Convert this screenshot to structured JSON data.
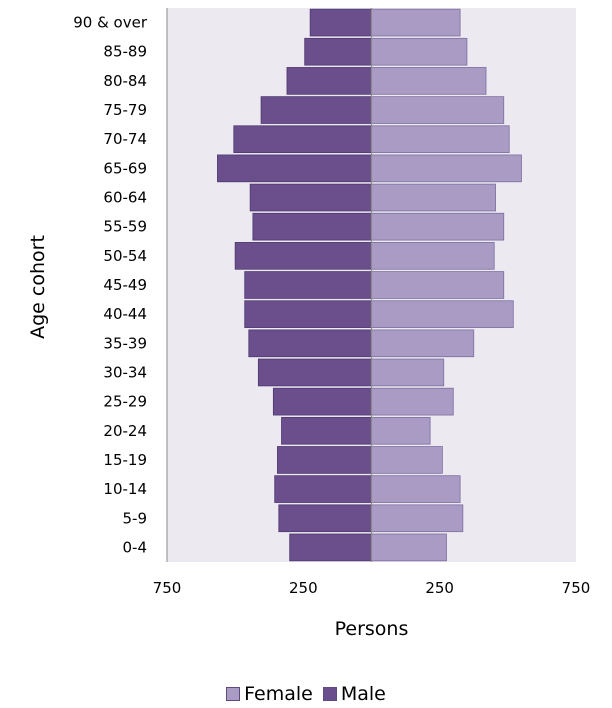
{
  "chart_data": {
    "type": "bar",
    "orientation": "horizontal",
    "subtype": "population-pyramid",
    "categories": [
      "0-4",
      "5-9",
      "10-14",
      "15-19",
      "20-24",
      "25-29",
      "30-34",
      "35-39",
      "40-44",
      "45-49",
      "50-54",
      "55-59",
      "60-64",
      "65-69",
      "70-74",
      "75-79",
      "80-84",
      "85-89",
      "90 & over"
    ],
    "series": [
      {
        "name": "Male",
        "color": "#6a4f8c",
        "side": "left",
        "values": [
          300,
          340,
          355,
          345,
          330,
          360,
          415,
          450,
          465,
          465,
          500,
          435,
          445,
          565,
          505,
          405,
          310,
          245,
          225
        ]
      },
      {
        "name": "Female",
        "color": "#a99bc4",
        "side": "right",
        "values": [
          275,
          335,
          325,
          260,
          215,
          300,
          265,
          375,
          520,
          485,
          450,
          485,
          455,
          550,
          505,
          485,
          420,
          350,
          325
        ]
      }
    ],
    "xlabel": "Persons",
    "ylabel": "Age cohort",
    "xlim": [
      -750,
      750
    ],
    "xticks": [
      {
        "value": -750,
        "label": "750"
      },
      {
        "value": -250,
        "label": "250"
      },
      {
        "value": 250,
        "label": "250"
      },
      {
        "value": 750,
        "label": "750"
      }
    ],
    "legend": {
      "position": "bottom",
      "entries": [
        "Female",
        "Male"
      ]
    },
    "plot_background": "#ece9f0",
    "grid": false
  }
}
